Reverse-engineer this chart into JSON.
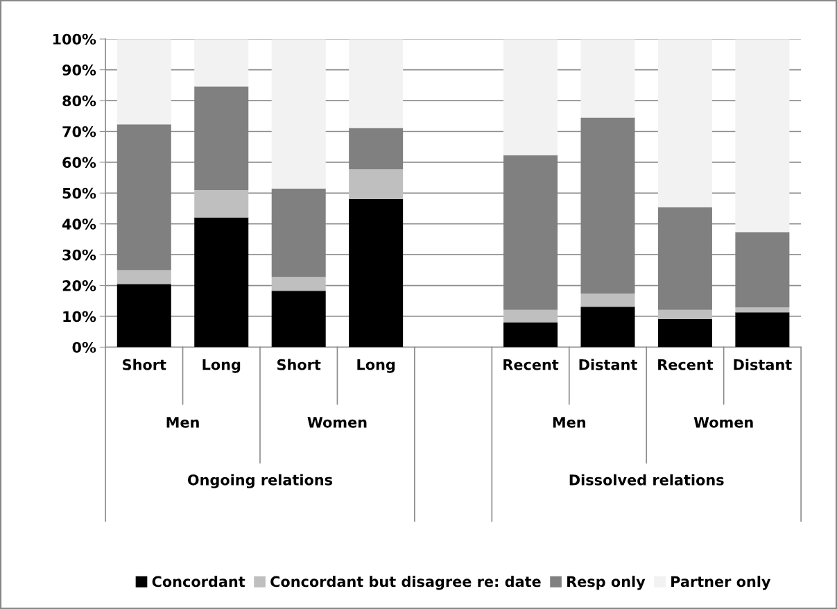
{
  "chart_data": {
    "type": "bar",
    "stacked": true,
    "categories": [
      "Short",
      "Long",
      "Short",
      "Long",
      null,
      "Recent",
      "Distant",
      "Recent",
      "Distant"
    ],
    "series": [
      {
        "name": "Concordant",
        "color": "#000000",
        "values": [
          20.5,
          42.1,
          18.3,
          48.1,
          null,
          8.0,
          13.1,
          9.1,
          11.3
        ]
      },
      {
        "name": "Concordant but disagree re: date",
        "color": "#bfbfbf",
        "values": [
          4.5,
          8.9,
          4.5,
          9.6,
          null,
          4.1,
          4.2,
          3.0,
          1.6
        ]
      },
      {
        "name": "Resp only",
        "color": "#808080",
        "values": [
          47.3,
          33.6,
          28.6,
          13.4,
          null,
          50.2,
          57.2,
          33.3,
          24.4
        ]
      },
      {
        "name": "Partner only",
        "color": "#f2f2f2",
        "values": [
          27.7,
          15.4,
          48.6,
          28.9,
          null,
          37.7,
          25.5,
          54.6,
          62.7
        ]
      }
    ],
    "annotations": [
      "Men",
      "Women",
      "Men",
      "Women",
      "Ongoing relations",
      "Dissolved relations"
    ],
    "ylim": [
      0,
      100
    ],
    "yticks": [
      {
        "value": 0,
        "label": "0%"
      },
      {
        "value": 10,
        "label": "10%"
      },
      {
        "value": 20,
        "label": "20%"
      },
      {
        "value": 30,
        "label": "30%"
      },
      {
        "value": 40,
        "label": "40%"
      },
      {
        "value": 50,
        "label": "50%"
      },
      {
        "value": 60,
        "label": "60%"
      },
      {
        "value": 70,
        "label": "70%"
      },
      {
        "value": 80,
        "label": "80%"
      },
      {
        "value": 90,
        "label": "90%"
      },
      {
        "value": 100,
        "label": "100%"
      }
    ],
    "grid": "y",
    "legend": "bottom"
  }
}
